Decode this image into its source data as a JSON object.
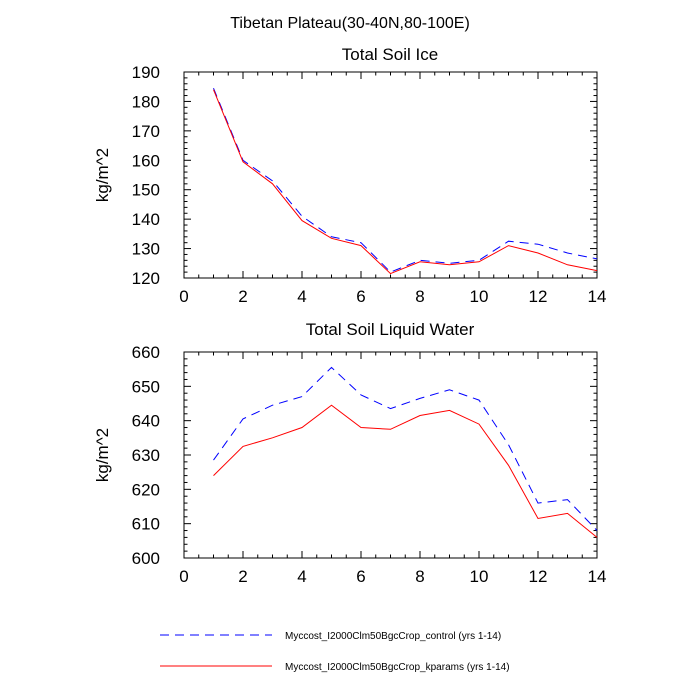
{
  "figure_title": "Tibetan Plateau(30-40N,80-100E)",
  "legend": [
    {
      "label": "Myccost_I2000Clm50BgcCrop_control (yrs 1-14)",
      "color": "#0000ff",
      "style": "dashed"
    },
    {
      "label": "Myccost_I2000Clm50BgcCrop_kparams (yrs 1-14)",
      "color": "#ff0000",
      "style": "solid"
    }
  ],
  "chart_data": [
    {
      "type": "line",
      "title": "Total Soil Ice",
      "xlabel": "",
      "ylabel": "kg/m^2",
      "xlim": [
        0,
        14
      ],
      "ylim": [
        120,
        190
      ],
      "xticks": [
        "0",
        "2",
        "4",
        "6",
        "8",
        "10",
        "12",
        "14"
      ],
      "yticks": [
        "120",
        "130",
        "140",
        "150",
        "160",
        "170",
        "180",
        "190"
      ],
      "x": [
        1,
        2,
        3,
        4,
        5,
        6,
        7,
        8,
        9,
        10,
        11,
        12,
        13,
        14
      ],
      "series": [
        {
          "name": "Myccost_I2000Clm50BgcCrop_control (yrs 1-14)",
          "color": "#0000ff",
          "style": "dashed",
          "values": [
            184.5,
            160.0,
            153.0,
            141.0,
            134.0,
            132.0,
            122.0,
            126.0,
            125.0,
            126.0,
            132.5,
            131.5,
            128.5,
            126.5
          ]
        },
        {
          "name": "Myccost_I2000Clm50BgcCrop_kparams (yrs 1-14)",
          "color": "#ff0000",
          "style": "solid",
          "values": [
            184.0,
            159.5,
            152.0,
            139.5,
            133.5,
            131.0,
            121.5,
            125.5,
            124.5,
            125.5,
            131.0,
            128.5,
            124.5,
            122.5
          ]
        }
      ]
    },
    {
      "type": "line",
      "title": "Total Soil Liquid Water",
      "xlabel": "",
      "ylabel": "kg/m^2",
      "xlim": [
        0,
        14
      ],
      "ylim": [
        600,
        660
      ],
      "xticks": [
        "0",
        "2",
        "4",
        "6",
        "8",
        "10",
        "12",
        "14"
      ],
      "yticks": [
        "600",
        "610",
        "620",
        "630",
        "640",
        "650",
        "660"
      ],
      "x": [
        1,
        2,
        3,
        4,
        5,
        6,
        7,
        8,
        9,
        10,
        11,
        12,
        13,
        14
      ],
      "series": [
        {
          "name": "Myccost_I2000Clm50BgcCrop_control (yrs 1-14)",
          "color": "#0000ff",
          "style": "dashed",
          "values": [
            628.5,
            640.5,
            644.5,
            647.0,
            655.5,
            647.5,
            643.5,
            646.5,
            649.0,
            646.0,
            633.0,
            616.0,
            617.0,
            608.0
          ]
        },
        {
          "name": "Myccost_I2000Clm50BgcCrop_kparams (yrs 1-14)",
          "color": "#ff0000",
          "style": "solid",
          "values": [
            624.0,
            632.5,
            635.0,
            638.0,
            644.5,
            638.0,
            637.5,
            641.5,
            643.0,
            639.0,
            627.0,
            611.5,
            613.0,
            606.0
          ]
        }
      ]
    }
  ]
}
